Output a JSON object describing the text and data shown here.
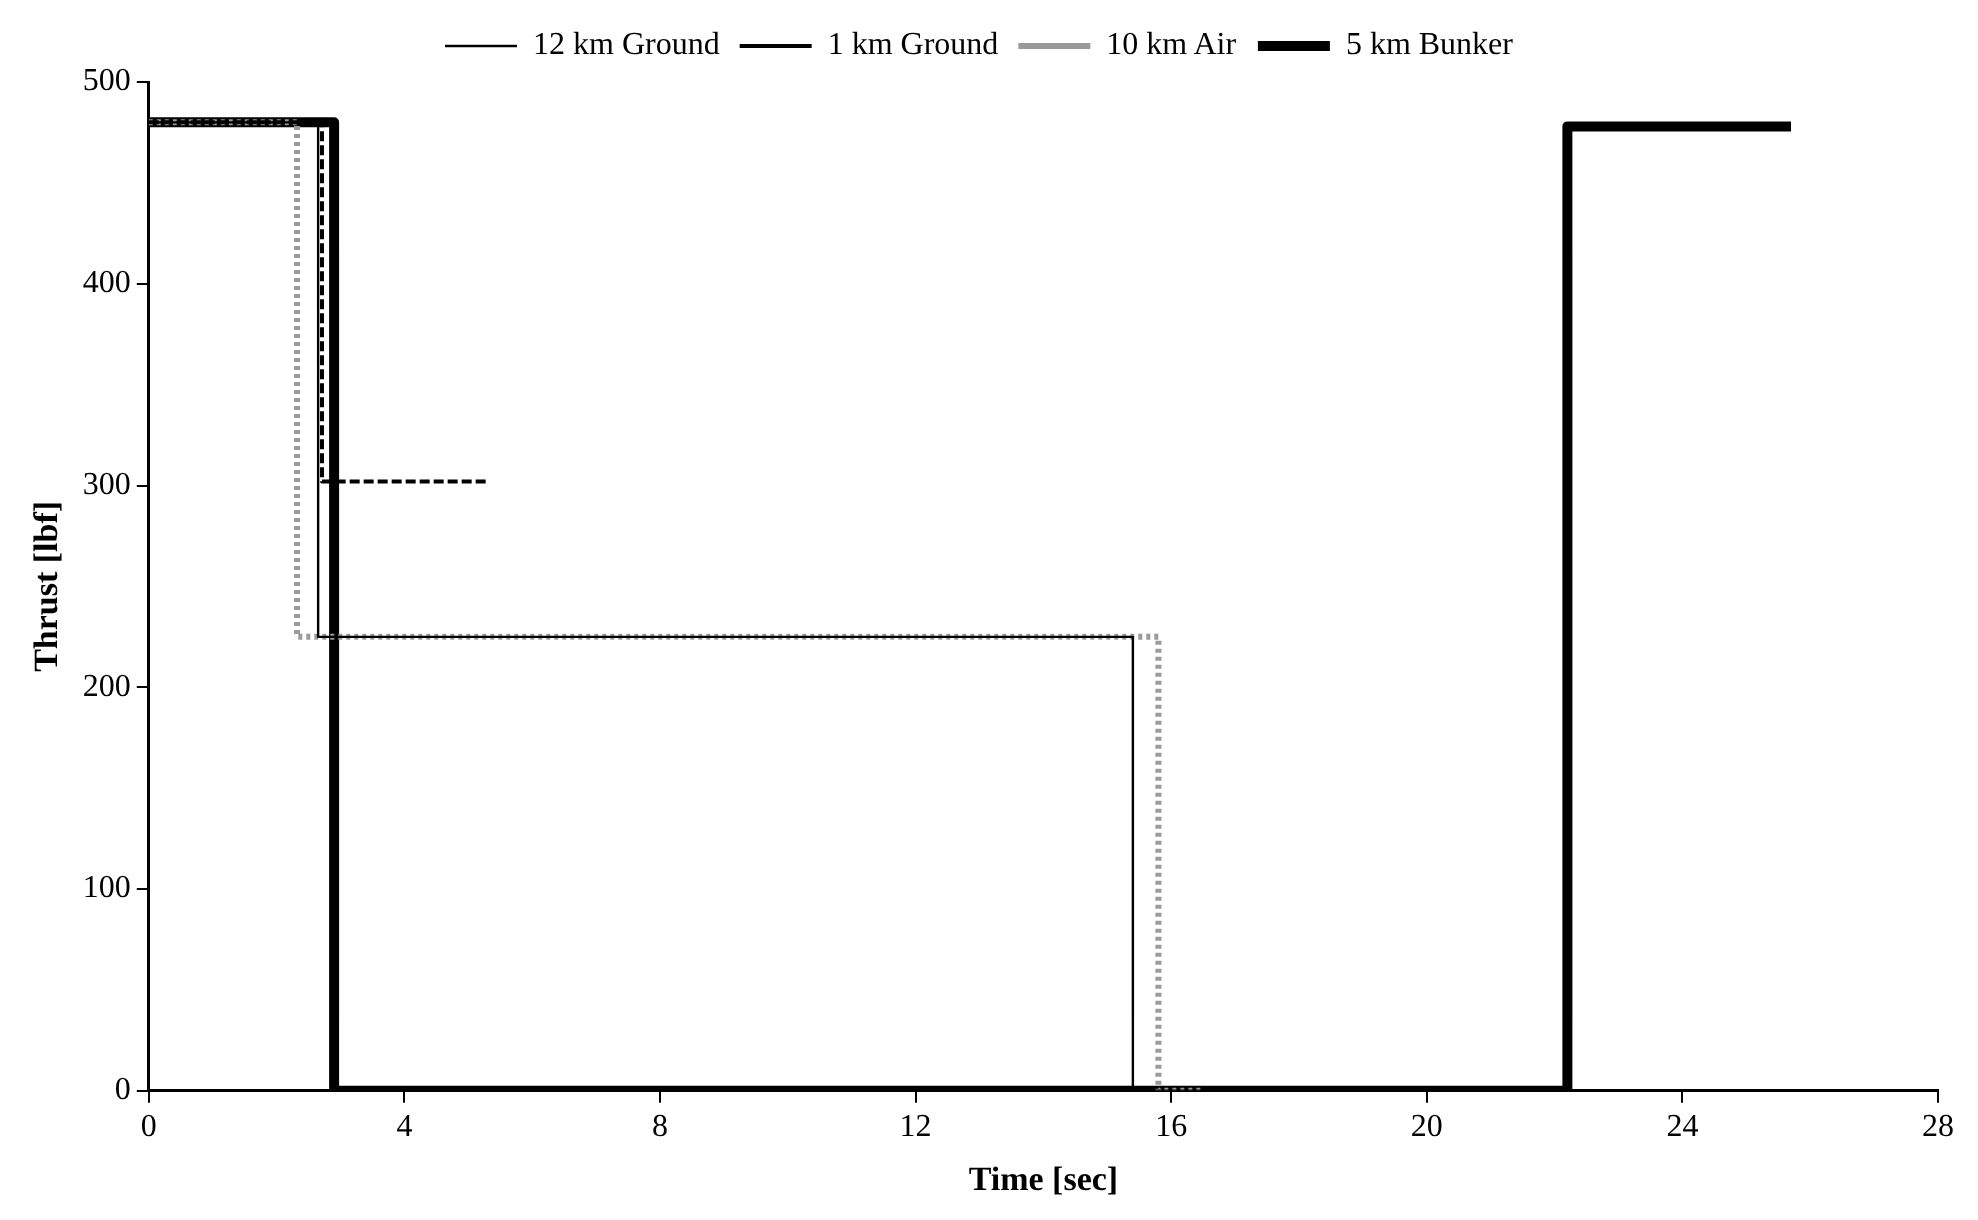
{
  "chart_data": {
    "type": "line",
    "xlabel": "Time [sec]",
    "ylabel": "Thrust [lbf]",
    "xlim": [
      0,
      28
    ],
    "xticks": [
      0,
      4,
      8,
      12,
      16,
      20,
      24,
      28
    ],
    "ylim": [
      0,
      500
    ],
    "yticks": [
      0,
      100,
      200,
      300,
      400,
      500
    ],
    "grid": false,
    "legend": "top",
    "marker": "none",
    "series": [
      {
        "name": "12 km Ground",
        "color": "#000000",
        "line_style": "solid",
        "x": [
          0,
          2.65,
          2.65,
          15.4,
          15.4,
          28
        ],
        "values": [
          480,
          480,
          225,
          225,
          0,
          0
        ]
      },
      {
        "name": "1 km Ground",
        "color": "#000000",
        "line_style": "dashed",
        "x": [
          0,
          2.71,
          2.71,
          5.3
        ],
        "values": [
          480,
          480,
          302,
          302
        ]
      },
      {
        "name": "10 km Air",
        "color": "#9a9a9a",
        "line_style": "dotted",
        "x": [
          0,
          2.32,
          2.32,
          15.8,
          15.8,
          16.5
        ],
        "values": [
          480,
          480,
          225,
          225,
          0,
          0
        ]
      },
      {
        "name": "5 km Bunker",
        "color": "#000000",
        "line_style": "solid",
        "x": [
          0,
          2.9,
          2.9,
          22.2,
          22.2,
          25.7
        ],
        "values": [
          480,
          480,
          0,
          0,
          478,
          478
        ]
      }
    ]
  }
}
